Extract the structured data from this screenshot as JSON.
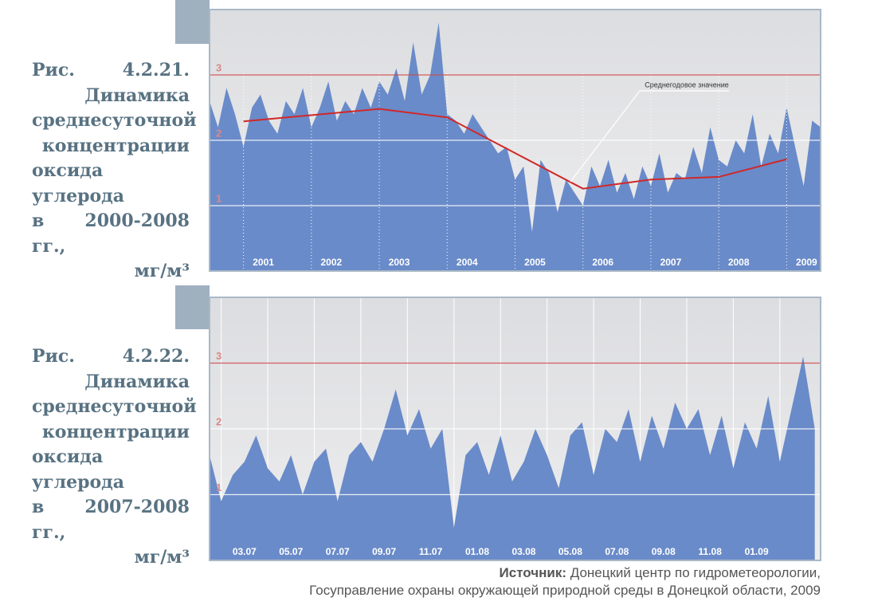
{
  "captions": [
    [
      "Рис. 4.2.21.",
      "Динамика",
      "среднесуточной",
      "концентрации",
      "оксида углерода",
      "в 2000-2008 гг.,",
      "мг/м³"
    ],
    [
      "Рис. 4.2.22.",
      "Динамика",
      "среднесуточной",
      "концентрации",
      "оксида углерода",
      "в 2007-2008 гг.,",
      "мг/м³"
    ]
  ],
  "chart_data": [
    {
      "type": "area",
      "xlim": [
        2000.5,
        2009.5
      ],
      "ylim": [
        0,
        4
      ],
      "yticks": [
        1,
        2,
        3
      ],
      "ytick_colors": [
        "#ffffff",
        "#ffffff",
        "#d04848"
      ],
      "xticks": [
        {
          "value": 2001,
          "label": "2001"
        },
        {
          "value": 2002,
          "label": "2002"
        },
        {
          "value": 2003,
          "label": "2003"
        },
        {
          "value": 2004,
          "label": "2004"
        },
        {
          "value": 2005,
          "label": "2005"
        },
        {
          "value": 2006,
          "label": "2006"
        },
        {
          "value": 2007,
          "label": "2007"
        },
        {
          "value": 2008,
          "label": "2008"
        },
        {
          "value": 2009,
          "label": "2009"
        }
      ],
      "series": [
        {
          "color": "#6a8bc9",
          "x": [
            2000.5,
            2000.625,
            2000.75,
            2000.875,
            2001,
            2001.125,
            2001.25,
            2001.375,
            2001.5,
            2001.625,
            2001.75,
            2001.875,
            2002,
            2002.125,
            2002.25,
            2002.375,
            2002.5,
            2002.625,
            2002.75,
            2002.875,
            2003,
            2003.125,
            2003.25,
            2003.375,
            2003.5,
            2003.625,
            2003.75,
            2003.875,
            2004,
            2004.125,
            2004.25,
            2004.375,
            2004.5,
            2004.625,
            2004.75,
            2004.875,
            2005,
            2005.125,
            2005.25,
            2005.375,
            2005.5,
            2005.625,
            2005.75,
            2005.875,
            2006,
            2006.125,
            2006.25,
            2006.375,
            2006.5,
            2006.625,
            2006.75,
            2006.875,
            2007,
            2007.125,
            2007.25,
            2007.375,
            2007.5,
            2007.625,
            2007.75,
            2007.875,
            2008,
            2008.125,
            2008.25,
            2008.375,
            2008.5,
            2008.625,
            2008.75,
            2008.875,
            2009,
            2009.125,
            2009.25,
            2009.375,
            2009.5
          ],
          "values": [
            2.6,
            2.2,
            2.8,
            2.4,
            1.9,
            2.5,
            2.7,
            2.3,
            2.1,
            2.6,
            2.4,
            2.8,
            2.2,
            2.5,
            2.9,
            2.3,
            2.6,
            2.4,
            2.8,
            2.5,
            2.9,
            2.7,
            3.1,
            2.6,
            3.5,
            2.7,
            3.0,
            3.8,
            2.4,
            2.3,
            2.1,
            2.4,
            2.2,
            2.0,
            1.8,
            1.9,
            1.4,
            1.6,
            0.6,
            1.7,
            1.5,
            0.9,
            1.4,
            1.2,
            1.0,
            1.6,
            1.3,
            1.7,
            1.2,
            1.5,
            1.1,
            1.6,
            1.3,
            1.8,
            1.2,
            1.5,
            1.4,
            1.9,
            1.5,
            2.2,
            1.7,
            1.6,
            2.0,
            1.8,
            2.4,
            1.6,
            2.1,
            1.8,
            2.5,
            1.9,
            1.3,
            2.3,
            2.2
          ]
        },
        {
          "type": "line",
          "name": "Среднегодовое значение",
          "color": "#d02828",
          "x": [
            2001,
            2003,
            2004,
            2006,
            2007,
            2008,
            2009
          ],
          "values": [
            2.29,
            2.48,
            2.35,
            1.26,
            1.4,
            1.44,
            1.71
          ]
        }
      ]
    },
    {
      "type": "area",
      "xlim": [
        1.5,
        27.75
      ],
      "ylim": [
        0,
        4
      ],
      "yticks": [
        1,
        2,
        3
      ],
      "ytick_colors": [
        "#ffffff",
        "#ffffff",
        "#d04848"
      ],
      "xgrid": [
        2,
        4,
        6,
        8,
        10,
        12,
        14,
        16,
        18,
        20,
        22,
        24,
        26
      ],
      "xticks": [
        {
          "value": 3,
          "label": "03.07"
        },
        {
          "value": 5,
          "label": "05.07"
        },
        {
          "value": 7,
          "label": "07.07"
        },
        {
          "value": 9,
          "label": "09.07"
        },
        {
          "value": 11,
          "label": "11.07"
        },
        {
          "value": 13,
          "label": "01.08"
        },
        {
          "value": 15,
          "label": "03.08"
        },
        {
          "value": 17,
          "label": "05.08"
        },
        {
          "value": 19,
          "label": "07.08"
        },
        {
          "value": 21,
          "label": "09.08"
        },
        {
          "value": 23,
          "label": "11.08"
        },
        {
          "value": 25,
          "label": "01.09"
        }
      ],
      "series": [
        {
          "color": "#6a8bc9",
          "x": [
            1.5,
            2,
            2.5,
            3,
            3.5,
            4,
            4.5,
            5,
            5.5,
            6,
            6.5,
            7,
            7.5,
            8,
            8.5,
            9,
            9.5,
            10,
            10.5,
            11,
            11.5,
            12,
            12.5,
            13,
            13.5,
            14,
            14.5,
            15,
            15.5,
            16,
            16.5,
            17,
            17.5,
            18,
            18.5,
            19,
            19.5,
            20,
            20.5,
            21,
            21.5,
            22,
            22.5,
            23,
            23.5,
            24,
            24.5,
            25,
            25.5,
            26,
            26.5,
            27,
            27.5
          ],
          "values": [
            1.6,
            0.9,
            1.3,
            1.5,
            1.9,
            1.4,
            1.2,
            1.6,
            1.0,
            1.5,
            1.7,
            0.9,
            1.6,
            1.8,
            1.5,
            2.0,
            2.6,
            1.9,
            2.3,
            1.7,
            2.0,
            0.5,
            1.6,
            1.8,
            1.3,
            1.9,
            1.2,
            1.5,
            2.0,
            1.6,
            1.1,
            1.9,
            2.1,
            1.3,
            2.0,
            1.8,
            2.3,
            1.5,
            2.2,
            1.7,
            2.4,
            2.0,
            2.3,
            1.6,
            2.2,
            1.4,
            2.1,
            1.7,
            2.5,
            1.5,
            2.3,
            3.1,
            2.0
          ]
        }
      ]
    }
  ],
  "source": {
    "label": "Источник:",
    "lines": [
      " Донецкий центр по гидрометеорологии,",
      "Госуправление охраны окружающей природной среды в Донецкой области, 2009"
    ]
  }
}
